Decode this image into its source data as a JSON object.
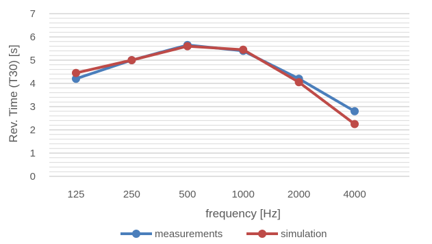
{
  "chart_data": {
    "type": "line",
    "title": "",
    "xlabel": "frequency [Hz]",
    "ylabel": "Rev. Time (T30) [s]",
    "categories": [
      "125",
      "250",
      "500",
      "1000",
      "2000",
      "4000"
    ],
    "ylim": [
      0,
      7
    ],
    "yticks": [
      "0",
      "1",
      "2",
      "3",
      "4",
      "5",
      "6",
      "7"
    ],
    "grid": true,
    "legend_position": "bottom",
    "series": [
      {
        "name": "measurements",
        "color": "#4a7ebb",
        "values": [
          4.2,
          5.0,
          5.65,
          5.4,
          4.2,
          2.8
        ]
      },
      {
        "name": "simulation",
        "color": "#be4b48",
        "values": [
          4.45,
          5.0,
          5.6,
          5.45,
          4.05,
          2.25
        ]
      }
    ]
  }
}
